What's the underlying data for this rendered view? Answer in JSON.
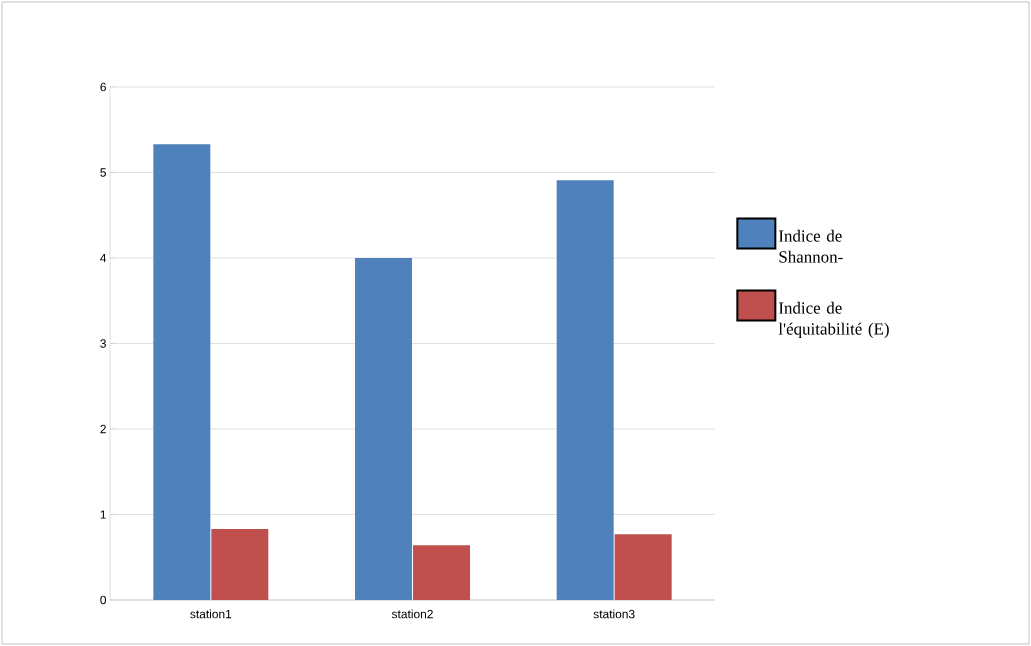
{
  "chart_data": {
    "type": "bar",
    "categories": [
      "station1",
      "station2",
      "station3"
    ],
    "series": [
      {
        "name": "Indice de Shannon-",
        "color": "#4f81bd",
        "values": [
          5.33,
          4.0,
          4.91
        ]
      },
      {
        "name": "Indice de l'équitabilité (E)",
        "color": "#c0504d",
        "values": [
          0.83,
          0.64,
          0.77
        ]
      }
    ],
    "ylim": [
      0,
      6
    ],
    "yticks": [
      0,
      1,
      2,
      3,
      4,
      5,
      6
    ],
    "grid": "y",
    "legend": "right"
  }
}
